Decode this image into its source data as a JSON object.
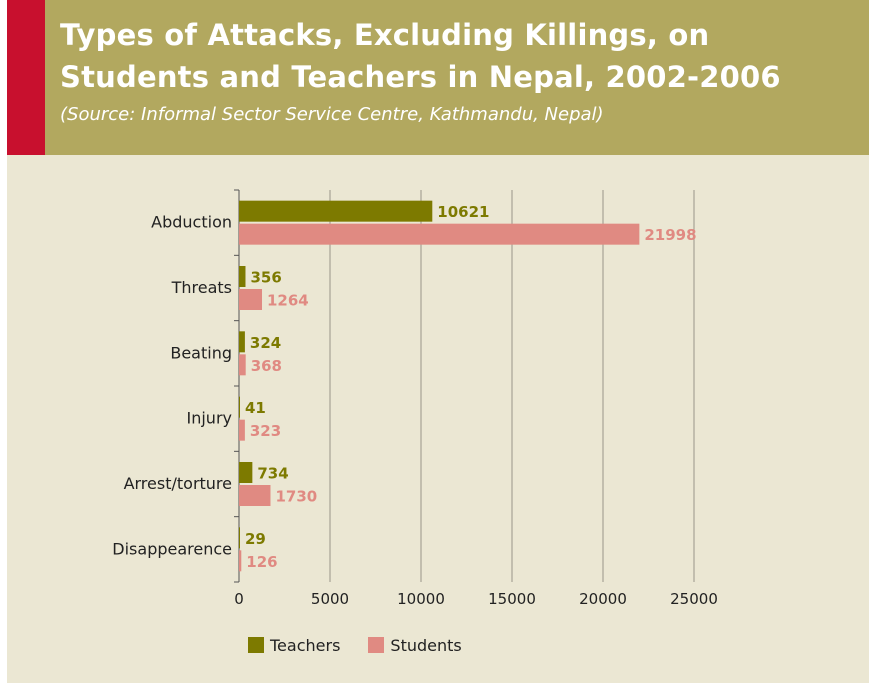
{
  "title": "Types of Attacks, Excluding Killings, on Students and Teachers in Nepal, 2002-2006",
  "subtitle": "(Source: Informal Sector Service Centre, Kathmandu, Nepal)",
  "colors": {
    "header_bg": "#b2a85f",
    "accent": "#c8102e",
    "background": "#ebe7d3",
    "teachers": "#7d7a00",
    "students": "#e08a82"
  },
  "chart_data": {
    "type": "bar",
    "orientation": "horizontal",
    "categories": [
      "Abduction",
      "Threats",
      "Beating",
      "Injury",
      "Arrest/torture",
      "Disappearence"
    ],
    "series": [
      {
        "name": "Teachers",
        "values": [
          10621,
          356,
          324,
          41,
          734,
          29
        ]
      },
      {
        "name": "Students",
        "values": [
          21998,
          1264,
          368,
          323,
          1730,
          126
        ]
      }
    ],
    "x_ticks": [
      "0",
      "5000",
      "10000",
      "15000",
      "20000",
      "25000"
    ],
    "xlim": [
      0,
      25000
    ],
    "grid": true,
    "legend_position": "bottom"
  }
}
